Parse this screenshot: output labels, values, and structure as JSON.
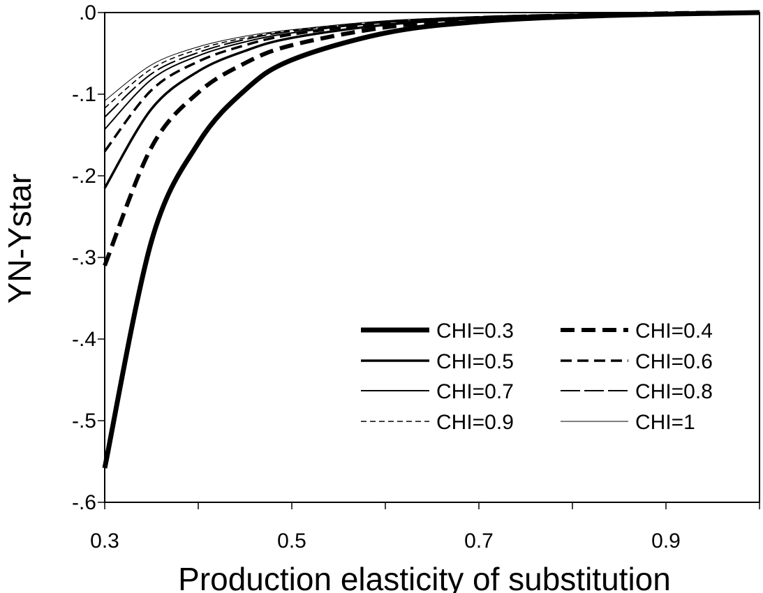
{
  "chart_data": {
    "type": "line",
    "title": "",
    "xlabel": "Production elasticity of substitution",
    "ylabel": "YN-Ystar",
    "xlim": [
      0.3,
      1.0
    ],
    "ylim": [
      -0.6,
      0.0
    ],
    "xticks": [
      0.3,
      0.5,
      0.7,
      0.9
    ],
    "xtick_labels": [
      "0.3",
      "0.5",
      "0.7",
      "0.9"
    ],
    "yticks": [
      0.0,
      -0.1,
      -0.2,
      -0.3,
      -0.4,
      -0.5,
      -0.6
    ],
    "ytick_labels": [
      ".0",
      "-.1",
      "-.2",
      "-.3",
      "-.4",
      "-.5",
      "-.6"
    ],
    "grid": false,
    "legend_position": "bottom-right",
    "x": [
      0.3,
      0.35,
      0.4,
      0.45,
      0.5,
      0.6,
      0.7,
      0.8,
      0.9,
      1.0
    ],
    "series": [
      {
        "name": "CHI=0.3",
        "style": "solid-extra-thick",
        "values": [
          -0.558,
          -0.28,
          -0.16,
          -0.095,
          -0.058,
          -0.025,
          -0.011,
          -0.005,
          -0.002,
          0.0
        ]
      },
      {
        "name": "CHI=0.4",
        "style": "dashed-extra-thick",
        "values": [
          -0.31,
          -0.165,
          -0.098,
          -0.062,
          -0.04,
          -0.018,
          -0.008,
          -0.004,
          -0.001,
          0.0
        ]
      },
      {
        "name": "CHI=0.5",
        "style": "solid-thick",
        "values": [
          -0.215,
          -0.118,
          -0.072,
          -0.047,
          -0.031,
          -0.015,
          -0.007,
          -0.003,
          -0.001,
          0.0
        ]
      },
      {
        "name": "CHI=0.6",
        "style": "dashed-thick",
        "values": [
          -0.17,
          -0.095,
          -0.06,
          -0.04,
          -0.027,
          -0.013,
          -0.006,
          -0.003,
          -0.001,
          0.0
        ]
      },
      {
        "name": "CHI=0.7",
        "style": "solid",
        "values": [
          -0.143,
          -0.082,
          -0.053,
          -0.036,
          -0.025,
          -0.012,
          -0.006,
          -0.003,
          -0.001,
          0.0
        ]
      },
      {
        "name": "CHI=0.8",
        "style": "long-dash",
        "values": [
          -0.128,
          -0.075,
          -0.049,
          -0.033,
          -0.023,
          -0.011,
          -0.005,
          -0.002,
          -0.001,
          0.0
        ]
      },
      {
        "name": "CHI=0.9",
        "style": "short-dash",
        "values": [
          -0.117,
          -0.069,
          -0.045,
          -0.031,
          -0.022,
          -0.011,
          -0.005,
          -0.002,
          -0.001,
          0.0
        ]
      },
      {
        "name": "CHI=1",
        "style": "solid-thin",
        "values": [
          -0.108,
          -0.064,
          -0.042,
          -0.029,
          -0.021,
          -0.01,
          -0.005,
          -0.002,
          -0.001,
          0.0
        ]
      }
    ],
    "colors": {
      "line": "#000000",
      "background": "#ffffff"
    }
  }
}
